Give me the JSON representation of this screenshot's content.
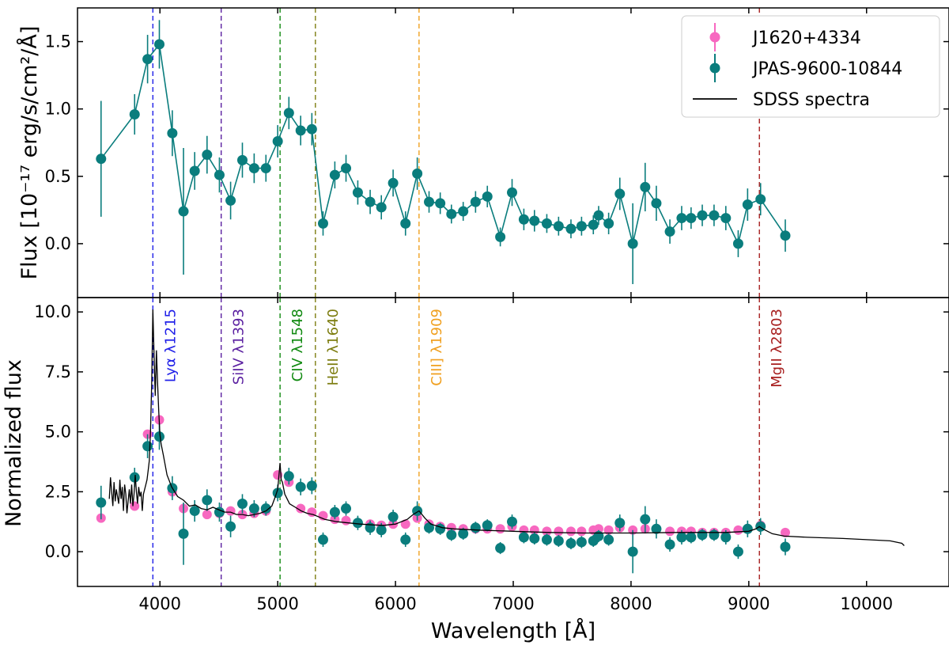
{
  "chart_data": {
    "type": "scatter",
    "x_axis": {
      "label": "Wavelength [Å]",
      "xlim": [
        3300,
        10700
      ],
      "ticks": [
        4000,
        5000,
        6000,
        7000,
        8000,
        9000,
        10000
      ],
      "tick_labels": [
        "4000",
        "5000",
        "6000",
        "7000",
        "8000",
        "9000",
        "10000"
      ]
    },
    "colors": {
      "pink": "#f768c0",
      "teal": "#0a7d7d",
      "sdss": "#000000"
    },
    "legend": {
      "position": "top-right",
      "entries": [
        "J1620+4334",
        "JPAS-9600-10844",
        "SDSS spectra"
      ]
    },
    "emission_lines": [
      {
        "name": "Lyα λ1215",
        "wavelength": 3940,
        "color": "#1f1fe8"
      },
      {
        "name": "SiIV λ1393",
        "wavelength": 4520,
        "color": "#5a1fa0"
      },
      {
        "name": "CIV λ1548",
        "wavelength": 5020,
        "color": "#118a11"
      },
      {
        "name": "HeII λ1640",
        "wavelength": 5320,
        "color": "#7d7d10"
      },
      {
        "name": "CIII] λ1909",
        "wavelength": 6200,
        "color": "#f0a020"
      },
      {
        "name": "MgII λ2803",
        "wavelength": 9090,
        "color": "#a82020"
      }
    ],
    "panels": [
      {
        "id": "top",
        "ylabel": "Flux [10⁻¹⁷ erg/s/cm²/Å]",
        "ylim": [
          -0.4,
          1.75
        ],
        "ticks": [
          0.0,
          0.5,
          1.0,
          1.5
        ],
        "tick_labels": [
          "0.0",
          "0.5",
          "1.0",
          "1.5"
        ],
        "series": [
          {
            "name": "JPAS-9600-10844",
            "x": [
              3500,
              3785,
              3895,
              3995,
              4105,
              4200,
              4295,
              4400,
              4505,
              4600,
              4700,
              4800,
              4900,
              5000,
              5095,
              5195,
              5290,
              5385,
              5485,
              5580,
              5680,
              5785,
              5880,
              5980,
              6085,
              6185,
              6285,
              6380,
              6475,
              6575,
              6680,
              6780,
              6890,
              6990,
              7090,
              7180,
              7285,
              7385,
              7490,
              7580,
              7680,
              7725,
              7810,
              7905,
              8015,
              8120,
              8215,
              8330,
              8430,
              8510,
              8605,
              8705,
              8805,
              8910,
              8990,
              9100,
              9310
            ],
            "y": [
              0.63,
              0.96,
              1.37,
              1.48,
              0.82,
              0.24,
              0.54,
              0.66,
              0.51,
              0.32,
              0.62,
              0.56,
              0.56,
              0.76,
              0.97,
              0.84,
              0.85,
              0.15,
              0.51,
              0.56,
              0.38,
              0.31,
              0.27,
              0.45,
              0.15,
              0.52,
              0.31,
              0.3,
              0.22,
              0.24,
              0.31,
              0.35,
              0.05,
              0.38,
              0.18,
              0.17,
              0.15,
              0.13,
              0.11,
              0.13,
              0.14,
              0.21,
              0.15,
              0.37,
              0.0,
              0.42,
              0.3,
              0.09,
              0.19,
              0.19,
              0.21,
              0.21,
              0.19,
              0.0,
              0.29,
              0.33,
              0.06
            ],
            "yerr": [
              0.43,
              0.15,
              0.18,
              0.18,
              0.17,
              0.47,
              0.14,
              0.14,
              0.13,
              0.14,
              0.13,
              0.11,
              0.1,
              0.12,
              0.12,
              0.11,
              0.12,
              0.09,
              0.1,
              0.1,
              0.09,
              0.09,
              0.09,
              0.1,
              0.09,
              0.12,
              0.08,
              0.08,
              0.07,
              0.07,
              0.08,
              0.08,
              0.07,
              0.1,
              0.08,
              0.08,
              0.07,
              0.07,
              0.07,
              0.07,
              0.07,
              0.07,
              0.08,
              0.12,
              0.3,
              0.18,
              0.13,
              0.09,
              0.09,
              0.08,
              0.08,
              0.08,
              0.09,
              0.1,
              0.12,
              0.12,
              0.12
            ]
          }
        ]
      },
      {
        "id": "bottom",
        "ylabel": "Normalized flux",
        "ylim": [
          -1.45,
          10.6
        ],
        "ticks": [
          0.0,
          2.5,
          5.0,
          7.5,
          10.0
        ],
        "tick_labels": [
          "0.0",
          "2.5",
          "5.0",
          "7.5",
          "10.0"
        ],
        "series": [
          {
            "name": "J1620+4334",
            "x": [
              3500,
              3785,
              3895,
              3995,
              4105,
              4200,
              4295,
              4400,
              4505,
              4600,
              4700,
              4800,
              4900,
              5000,
              5095,
              5195,
              5290,
              5385,
              5485,
              5580,
              5680,
              5785,
              5880,
              5980,
              6085,
              6185,
              6285,
              6380,
              6475,
              6575,
              6680,
              6780,
              6890,
              6990,
              7090,
              7180,
              7285,
              7385,
              7490,
              7580,
              7680,
              7725,
              7810,
              7905,
              8015,
              8120,
              8215,
              8330,
              8430,
              8510,
              8605,
              8705,
              8805,
              8910,
              8990,
              9100,
              9310
            ],
            "y": [
              1.4,
              1.9,
              4.9,
              5.5,
              2.5,
              1.8,
              1.7,
              1.55,
              1.6,
              1.7,
              1.55,
              1.6,
              1.7,
              3.2,
              2.9,
              1.8,
              1.65,
              1.5,
              1.35,
              1.3,
              1.2,
              1.15,
              1.1,
              1.15,
              1.15,
              1.4,
              1.15,
              1.05,
              1.0,
              0.95,
              0.95,
              0.95,
              0.95,
              1.05,
              0.9,
              0.9,
              0.85,
              0.85,
              0.85,
              0.85,
              0.9,
              0.95,
              0.9,
              1.0,
              0.9,
              0.95,
              0.95,
              0.85,
              0.85,
              0.85,
              0.8,
              0.8,
              0.8,
              0.9,
              0.95,
              1.1,
              0.8
            ]
          },
          {
            "name": "JPAS-9600-10844",
            "x": [
              3500,
              3785,
              3895,
              3995,
              4105,
              4200,
              4295,
              4400,
              4505,
              4600,
              4700,
              4800,
              4900,
              5000,
              5095,
              5195,
              5290,
              5385,
              5485,
              5580,
              5680,
              5785,
              5880,
              5980,
              6085,
              6185,
              6285,
              6380,
              6475,
              6575,
              6680,
              6780,
              6890,
              6990,
              7090,
              7180,
              7285,
              7385,
              7490,
              7580,
              7680,
              7725,
              7810,
              7905,
              8015,
              8120,
              8215,
              8330,
              8430,
              8510,
              8605,
              8705,
              8805,
              8910,
              8990,
              9100,
              9310
            ],
            "y": [
              2.05,
              3.1,
              4.4,
              4.8,
              2.65,
              0.75,
              1.7,
              2.15,
              1.65,
              1.05,
              2.0,
              1.8,
              1.8,
              2.45,
              3.15,
              2.7,
              2.75,
              0.5,
              1.65,
              1.8,
              1.2,
              1.0,
              0.9,
              1.45,
              0.5,
              1.7,
              1.0,
              0.95,
              0.7,
              0.75,
              1.0,
              1.1,
              0.15,
              1.25,
              0.6,
              0.55,
              0.5,
              0.45,
              0.35,
              0.4,
              0.45,
              0.65,
              0.5,
              1.2,
              0.0,
              1.35,
              0.95,
              0.3,
              0.6,
              0.6,
              0.7,
              0.7,
              0.6,
              0.0,
              0.95,
              1.05,
              0.2
            ],
            "yerr": [
              0.7,
              0.4,
              0.5,
              0.55,
              0.5,
              1.3,
              0.45,
              0.45,
              0.4,
              0.45,
              0.4,
              0.35,
              0.3,
              0.35,
              0.35,
              0.35,
              0.35,
              0.3,
              0.3,
              0.3,
              0.3,
              0.3,
              0.3,
              0.3,
              0.3,
              0.4,
              0.25,
              0.25,
              0.25,
              0.25,
              0.25,
              0.25,
              0.25,
              0.3,
              0.25,
              0.25,
              0.25,
              0.25,
              0.25,
              0.25,
              0.25,
              0.25,
              0.25,
              0.35,
              0.9,
              0.55,
              0.4,
              0.3,
              0.3,
              0.25,
              0.25,
              0.25,
              0.3,
              0.3,
              0.35,
              0.35,
              0.35
            ]
          },
          {
            "name": "SDSS spectra",
            "x": [
              3570,
              3580,
              3590,
              3600,
              3610,
              3620,
              3630,
              3640,
              3650,
              3660,
              3670,
              3680,
              3690,
              3700,
              3710,
              3720,
              3730,
              3740,
              3750,
              3760,
              3770,
              3780,
              3790,
              3800,
              3810,
              3820,
              3830,
              3840,
              3850,
              3860,
              3870,
              3880,
              3890,
              3900,
              3910,
              3920,
              3930,
              3940,
              3950,
              3960,
              3970,
              3980,
              3990,
              4000,
              4010,
              4030,
              4060,
              4100,
              4150,
              4200,
              4250,
              4300,
              4350,
              4400,
              4450,
              4500,
              4550,
              4600,
              4650,
              4700,
              4750,
              4800,
              4850,
              4900,
              4950,
              4980,
              5000,
              5020,
              5030,
              5040,
              5060,
              5080,
              5100,
              5150,
              5200,
              5250,
              5300,
              5350,
              5400,
              5500,
              5600,
              5700,
              5800,
              5900,
              6000,
              6050,
              6100,
              6150,
              6200,
              6250,
              6300,
              6400,
              6500,
              6700,
              7000,
              7300,
              7600,
              8000,
              8400,
              8800,
              9000,
              9060,
              9090,
              9120,
              9200,
              9300,
              9500,
              9800,
              10000,
              10200,
              10300,
              10320
            ],
            "y": [
              2.2,
              3.1,
              2.5,
              1.9,
              2.9,
              2.1,
              2.6,
              2.3,
              2.0,
              3.0,
              2.2,
              2.7,
              1.7,
              2.8,
              2.4,
              1.6,
              2.1,
              2.6,
              2.0,
              2.8,
              1.9,
              2.4,
              3.2,
              2.5,
              2.0,
              2.7,
              2.3,
              2.5,
              1.7,
              2.4,
              2.6,
              2.8,
              3.0,
              3.4,
              3.8,
              5.0,
              7.0,
              10.1,
              8.2,
              6.5,
              8.4,
              7.0,
              5.8,
              4.9,
              4.5,
              4.0,
              3.2,
              2.7,
              2.3,
              2.15,
              1.9,
              1.95,
              1.8,
              1.75,
              1.85,
              1.75,
              1.65,
              1.65,
              1.55,
              1.55,
              1.5,
              1.55,
              1.6,
              1.7,
              1.9,
              2.3,
              2.6,
              3.7,
              3.0,
              2.9,
              2.4,
              2.2,
              2.0,
              1.85,
              1.7,
              1.6,
              1.55,
              1.45,
              1.35,
              1.25,
              1.2,
              1.15,
              1.12,
              1.1,
              1.15,
              1.25,
              1.35,
              1.55,
              1.7,
              1.4,
              1.15,
              1.0,
              0.95,
              0.9,
              0.85,
              0.8,
              0.78,
              0.78,
              0.8,
              0.8,
              0.85,
              0.95,
              1.05,
              0.95,
              0.75,
              0.65,
              0.6,
              0.55,
              0.5,
              0.45,
              0.35,
              0.25
            ]
          }
        ]
      }
    ]
  }
}
